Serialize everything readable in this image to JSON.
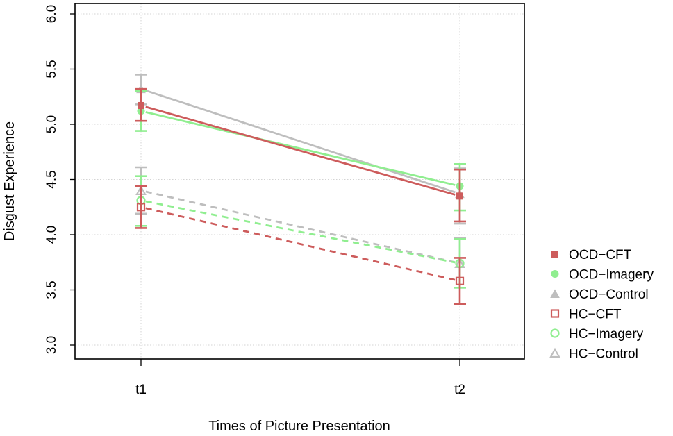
{
  "chart_data": {
    "type": "line",
    "xlabel": "Times of Picture Presentation",
    "ylabel": "Disgust Experience",
    "x_categories": [
      "t1",
      "t2"
    ],
    "ylim": [
      3.0,
      6.0
    ],
    "yticks": [
      "3.0",
      "3.5",
      "4.0",
      "4.5",
      "5.0",
      "5.5",
      "6.0"
    ],
    "grid": true,
    "legend_position": "right",
    "series": [
      {
        "name": "OCD−CFT",
        "values": [
          5.17,
          4.35
        ],
        "err_low": [
          5.03,
          4.12
        ],
        "err_high": [
          5.32,
          4.59
        ],
        "color": "#cd5c5c",
        "marker": "square-filled",
        "dash": false
      },
      {
        "name": "OCD−Imagery",
        "values": [
          5.12,
          4.44
        ],
        "err_low": [
          4.94,
          4.22
        ],
        "err_high": [
          5.3,
          4.64
        ],
        "color": "#90ee90",
        "marker": "circle-filled",
        "dash": false
      },
      {
        "name": "OCD−Control",
        "values": [
          5.32,
          4.37
        ],
        "err_low": [
          5.18,
          4.1
        ],
        "err_high": [
          5.45,
          4.6
        ],
        "color": "#bebebe",
        "marker": "triangle-filled",
        "dash": false
      },
      {
        "name": "HC−CFT",
        "values": [
          4.25,
          3.58
        ],
        "err_low": [
          4.06,
          3.37
        ],
        "err_high": [
          4.44,
          3.79
        ],
        "color": "#cd5c5c",
        "marker": "square-open",
        "dash": true
      },
      {
        "name": "HC−Imagery",
        "values": [
          4.31,
          3.74
        ],
        "err_low": [
          4.08,
          3.52
        ],
        "err_high": [
          4.53,
          3.96
        ],
        "color": "#90ee90",
        "marker": "circle-open",
        "dash": true
      },
      {
        "name": "HC−Control",
        "values": [
          4.4,
          3.74
        ],
        "err_low": [
          4.19,
          3.52
        ],
        "err_high": [
          4.61,
          3.97
        ],
        "color": "#bebebe",
        "marker": "triangle-open",
        "dash": true
      }
    ]
  }
}
